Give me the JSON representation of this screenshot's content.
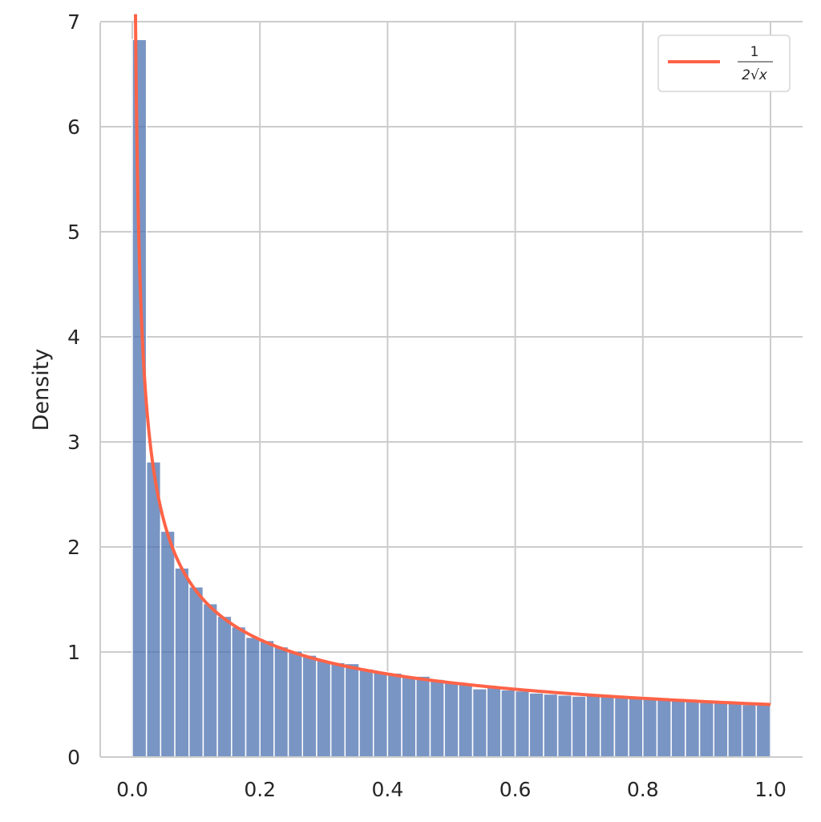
{
  "chart_data": {
    "type": "bar",
    "subtype": "histogram-with-line",
    "title": "",
    "xlabel": "",
    "ylabel": "Density",
    "xlim": [
      0.0,
      1.0
    ],
    "ylim": [
      0,
      7
    ],
    "xticks": [
      "0.0",
      "0.2",
      "0.4",
      "0.6",
      "0.8",
      "1.0"
    ],
    "yticks": [
      "0",
      "1",
      "2",
      "3",
      "4",
      "5",
      "6",
      "7"
    ],
    "grid": true,
    "legend_position": "top-right",
    "bins": 45,
    "bin_range": [
      0.0,
      1.0
    ],
    "values": [
      6.83,
      2.81,
      2.15,
      1.8,
      1.62,
      1.46,
      1.34,
      1.24,
      1.14,
      1.11,
      1.05,
      1.01,
      0.97,
      0.92,
      0.9,
      0.89,
      0.84,
      0.81,
      0.8,
      0.77,
      0.77,
      0.74,
      0.71,
      0.7,
      0.65,
      0.66,
      0.64,
      0.63,
      0.61,
      0.6,
      0.59,
      0.58,
      0.6,
      0.59,
      0.58,
      0.57,
      0.57,
      0.56,
      0.55,
      0.53,
      0.52,
      0.52,
      0.51,
      0.5,
      0.5
    ],
    "line": {
      "name": "1/(2√x)",
      "function": "1/(2*sqrt(x))",
      "x_range": [
        0.005,
        1.0
      ]
    },
    "colors": {
      "bars": "#4c72b0",
      "line": "#ff6347",
      "grid": "#cccccc"
    }
  },
  "legend": {
    "numerator": "1",
    "denominator": "2√x"
  }
}
